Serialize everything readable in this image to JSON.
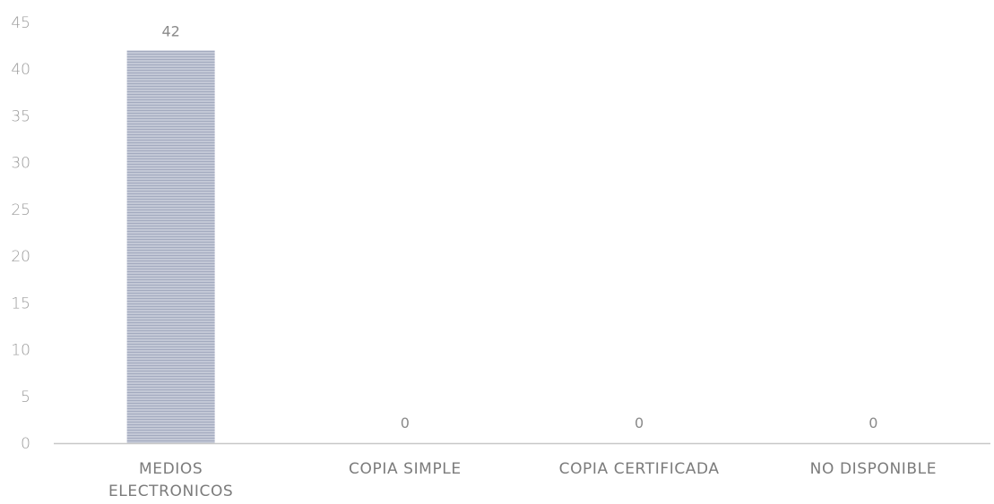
{
  "chart_data": {
    "type": "bar",
    "categories": [
      [
        "MEDIOS",
        "ELECTRONICOS"
      ],
      [
        "COPIA SIMPLE"
      ],
      [
        "COPIA CERTIFICADA"
      ],
      [
        "NO DISPONIBLE"
      ]
    ],
    "values": [
      42,
      0,
      0,
      0
    ],
    "data_labels": [
      "42",
      "0",
      "0",
      "0"
    ],
    "ylim": [
      0,
      45
    ],
    "yticks": [
      0,
      5,
      10,
      15,
      20,
      25,
      30,
      35,
      40,
      45
    ],
    "title": "",
    "xlabel": "",
    "ylabel": "",
    "grid": false,
    "legend": "none",
    "bar_color": "#b9bfd0",
    "bar_pattern_color": "#9aa2b8",
    "axis_color": "#c8c8c8"
  }
}
